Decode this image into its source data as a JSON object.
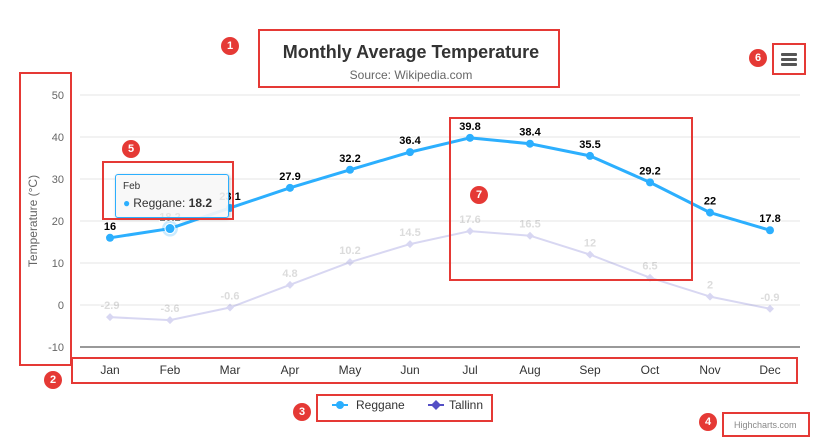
{
  "chart_data": {
    "type": "line",
    "title": "Monthly Average Temperature",
    "subtitle": "Source: Wikipedia.com",
    "ylabel": "Temperature (°C)",
    "xlabel": "",
    "categories": [
      "Jan",
      "Feb",
      "Mar",
      "Apr",
      "May",
      "Jun",
      "Jul",
      "Aug",
      "Sep",
      "Oct",
      "Nov",
      "Dec"
    ],
    "ylim": [
      -10,
      50
    ],
    "yticks": [
      -10,
      0,
      10,
      20,
      30,
      40,
      50
    ],
    "grid": true,
    "legend_position": "bottom-center",
    "series": [
      {
        "name": "Reggane",
        "values": [
          16,
          18.2,
          23.1,
          27.9,
          32.2,
          36.4,
          39.8,
          38.4,
          35.5,
          29.2,
          22,
          17.8
        ],
        "color": "#2caffe",
        "marker": "circle",
        "data_labels": true
      },
      {
        "name": "Tallinn",
        "values": [
          -2.9,
          -3.6,
          -0.6,
          4.8,
          10.2,
          14.5,
          17.6,
          16.5,
          12,
          6.5,
          2,
          -0.9
        ],
        "color": "#544fc5",
        "marker": "diamond",
        "data_labels": true,
        "dimmed": true
      }
    ]
  },
  "tooltip": {
    "header": "Feb",
    "series_name": "Reggane:",
    "value": "18.2"
  },
  "credits": "Highcharts.com",
  "menu_icon": "hamburger-menu-icon",
  "annotations": [
    "1",
    "2",
    "3",
    "4",
    "5",
    "6",
    "7"
  ],
  "annotation_color": "#e53935"
}
